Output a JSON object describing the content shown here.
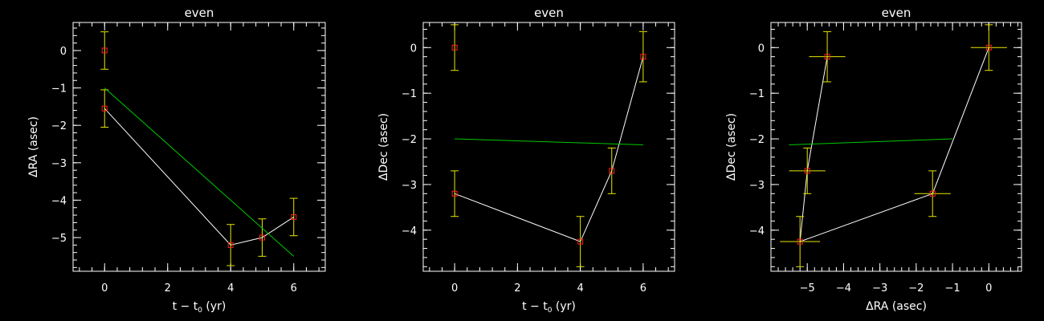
{
  "colors": {
    "background": "#000000",
    "axes": "#ffffff",
    "data_line": "#ffffff",
    "fit_line": "#00c800",
    "error_bars": "#e6e600",
    "markers": "#ff2020"
  },
  "chart_data": [
    {
      "type": "line",
      "title": "even",
      "xlabel": "t − t",
      "xlabel_sub": "0",
      "xlabel_tail": " (yr)",
      "ylabel": "ΔRA (asec)",
      "xlim": [
        -1,
        7
      ],
      "ylim": [
        -5.9,
        0.75
      ],
      "xticks": [
        0,
        2,
        4,
        6
      ],
      "xtick_labels": [
        "0",
        "2",
        "4",
        "6"
      ],
      "yticks": [
        0,
        -1,
        -2,
        -3,
        -4,
        -5
      ],
      "ytick_labels": [
        "0",
        "−1",
        "−2",
        "−3",
        "−4",
        "−5"
      ],
      "series": [
        {
          "role": "data",
          "x": [
            0,
            0,
            4,
            5,
            6
          ],
          "y": [
            0,
            -1.55,
            -5.2,
            -5.0,
            -4.45
          ],
          "yerr": [
            0.5,
            0.5,
            0.55,
            0.5,
            0.5
          ],
          "xerr": [
            0,
            0,
            0,
            0,
            0
          ],
          "line_from_index": 1
        },
        {
          "role": "fit",
          "x": [
            0,
            6
          ],
          "y": [
            -1.0,
            -5.5
          ]
        }
      ]
    },
    {
      "type": "line",
      "title": "even",
      "xlabel": "t − t",
      "xlabel_sub": "0",
      "xlabel_tail": " (yr)",
      "ylabel": "ΔDec (asec)",
      "xlim": [
        -1,
        7
      ],
      "ylim": [
        -4.9,
        0.55
      ],
      "xticks": [
        0,
        2,
        4,
        6
      ],
      "xtick_labels": [
        "0",
        "2",
        "4",
        "6"
      ],
      "yticks": [
        0,
        -1,
        -2,
        -3,
        -4
      ],
      "ytick_labels": [
        "0",
        "−1",
        "−2",
        "−3",
        "−4"
      ],
      "series": [
        {
          "role": "data",
          "x": [
            0,
            0,
            4,
            5,
            6
          ],
          "y": [
            0,
            -3.2,
            -4.25,
            -2.7,
            -0.2
          ],
          "yerr": [
            0.5,
            0.5,
            0.55,
            0.5,
            0.55
          ],
          "xerr": [
            0,
            0,
            0,
            0,
            0
          ],
          "line_from_index": 1
        },
        {
          "role": "fit",
          "x": [
            0,
            6
          ],
          "y": [
            -2.0,
            -2.13
          ]
        }
      ]
    },
    {
      "type": "scatter",
      "title": "even",
      "xlabel": "ΔRA (asec)",
      "xlabel_sub": "",
      "xlabel_tail": "",
      "ylabel": "ΔDec (asec)",
      "xlim": [
        -6.0,
        0.9
      ],
      "ylim": [
        -4.9,
        0.55
      ],
      "xticks": [
        -5,
        -4,
        -3,
        -2,
        -1,
        0
      ],
      "xtick_labels": [
        "−5",
        "−4",
        "−3",
        "−2",
        "−1",
        "0"
      ],
      "yticks": [
        0,
        -1,
        -2,
        -3,
        -4
      ],
      "ytick_labels": [
        "0",
        "−1",
        "−2",
        "−3",
        "−4"
      ],
      "series": [
        {
          "role": "data",
          "x": [
            0,
            -1.55,
            -5.2,
            -5.0,
            -4.45
          ],
          "y": [
            0,
            -3.2,
            -4.25,
            -2.7,
            -0.2
          ],
          "yerr": [
            0.5,
            0.5,
            0.55,
            0.5,
            0.55
          ],
          "xerr": [
            0.5,
            0.5,
            0.55,
            0.5,
            0.5
          ],
          "line_from_index": 0
        },
        {
          "role": "fit",
          "x": [
            -5.5,
            -1.0
          ],
          "y": [
            -2.13,
            -2.0
          ]
        }
      ]
    }
  ]
}
